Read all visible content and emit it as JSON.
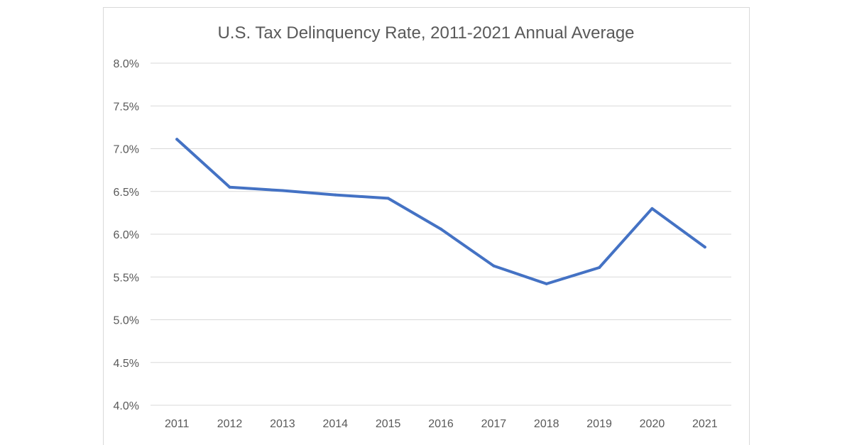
{
  "chart_data": {
    "type": "line",
    "title": "U.S. Tax Delinquency Rate, 2011-2021 Annual Average",
    "xlabel": "",
    "ylabel": "",
    "categories": [
      "2011",
      "2012",
      "2013",
      "2014",
      "2015",
      "2016",
      "2017",
      "2018",
      "2019",
      "2020",
      "2021"
    ],
    "y_ticks": [
      "4.0%",
      "4.5%",
      "5.0%",
      "5.5%",
      "6.0%",
      "6.5%",
      "7.0%",
      "7.5%",
      "8.0%"
    ],
    "ylim": [
      4.0,
      8.0
    ],
    "grid": true,
    "legend": "none",
    "series": [
      {
        "values": [
          7.11,
          6.55,
          6.51,
          6.46,
          6.42,
          6.06,
          5.63,
          5.42,
          5.61,
          6.3,
          5.85
        ],
        "color": "#4472c4"
      }
    ]
  }
}
